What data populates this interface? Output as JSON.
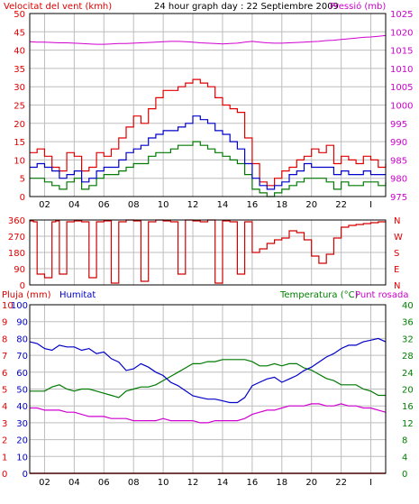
{
  "header": {
    "left_label": "Velocitat del vent (kmh)",
    "title": "24 hour graph day : 22 Septiembre 2009",
    "right_label": "Pressió (mb)"
  },
  "bottom_header": {
    "rain_label": "Pluja (mm)",
    "humidity_label": "Humitat",
    "temperature_label": "Temperatura (°C)",
    "dewpoint_label": "Punt rosada"
  },
  "colors": {
    "background": "#ffffff",
    "grid": "#bdbdbd",
    "frame": "#000000",
    "gust": "#e00000",
    "wind": "#0000c8",
    "wind_green": "#007a00",
    "pressure": "#d000d0",
    "direction": "#d00000",
    "rain": "#d00000",
    "humidity": "#0000c8",
    "temperature": "#007a00",
    "dewpoint": "#d000d0",
    "label_red": "#e00000",
    "label_magenta": "#cc00cc",
    "label_blue": "#0000cc",
    "label_green": "#008000"
  },
  "chart_data": [
    {
      "type": "line",
      "x": [
        0,
        0.5,
        1,
        1.5,
        2,
        2.5,
        3,
        3.5,
        4,
        4.5,
        5,
        5.5,
        6,
        6.5,
        7,
        7.5,
        8,
        8.5,
        9,
        9.5,
        10,
        10.5,
        11,
        11.5,
        12,
        12.5,
        13,
        13.5,
        14,
        14.5,
        15,
        15.5,
        16,
        16.5,
        17,
        17.5,
        18,
        18.5,
        19,
        19.5,
        20,
        20.5,
        21,
        21.5,
        22,
        22.5,
        23,
        23.5,
        24
      ],
      "x_tick_labels": [
        "02",
        "04",
        "06",
        "08",
        "10",
        "12",
        "14",
        "16",
        "18",
        "20",
        "22",
        "I"
      ],
      "x_ticks": [
        1,
        3,
        5,
        7,
        9,
        11,
        13,
        15,
        17,
        19,
        21,
        23
      ],
      "series": [
        {
          "values": [
            12,
            13,
            11,
            8,
            7,
            12,
            11,
            7,
            8,
            12,
            11,
            13,
            16,
            19,
            22,
            20,
            24,
            27,
            29,
            29,
            30,
            31,
            32,
            31,
            30,
            27,
            25,
            24,
            23,
            16,
            9,
            4,
            3,
            5,
            7,
            8,
            10,
            11,
            13,
            12,
            14,
            9,
            11,
            10,
            9,
            11,
            10,
            8,
            9
          ],
          "color_key": "gust"
        },
        {
          "values": [
            8,
            9,
            8,
            7,
            5,
            6,
            7,
            4,
            5,
            7,
            8,
            8,
            10,
            12,
            13,
            14,
            16,
            17,
            18,
            18,
            19,
            20,
            22,
            21,
            20,
            18,
            17,
            15,
            13,
            9,
            5,
            3,
            2,
            3,
            4,
            6,
            7,
            9,
            8,
            8,
            8,
            6,
            7,
            6,
            6,
            7,
            6,
            6,
            6
          ],
          "color_key": "wind"
        },
        {
          "values": [
            5,
            5,
            4,
            3,
            2,
            4,
            5,
            2,
            3,
            5,
            6,
            6,
            7,
            8,
            9,
            9,
            11,
            12,
            12,
            13,
            14,
            14,
            15,
            14,
            13,
            12,
            11,
            10,
            9,
            6,
            2,
            1,
            0,
            1,
            2,
            3,
            4,
            5,
            5,
            5,
            4,
            2,
            4,
            3,
            3,
            4,
            4,
            3,
            4
          ],
          "color_key": "wind_green"
        }
      ],
      "pressure_series": {
        "values": [
          1017.3,
          1017.2,
          1017.2,
          1017.1,
          1017.0,
          1017.0,
          1016.9,
          1016.8,
          1016.7,
          1016.6,
          1016.6,
          1016.7,
          1016.8,
          1016.8,
          1016.9,
          1017.0,
          1017.1,
          1017.2,
          1017.3,
          1017.4,
          1017.4,
          1017.3,
          1017.2,
          1017.0,
          1016.9,
          1016.8,
          1016.7,
          1016.8,
          1016.9,
          1017.2,
          1017.4,
          1017.2,
          1017.0,
          1016.9,
          1016.9,
          1017.0,
          1017.1,
          1017.2,
          1017.3,
          1017.4,
          1017.6,
          1017.7,
          1017.9,
          1018.1,
          1018.3,
          1018.5,
          1018.6,
          1018.8,
          1019.0
        ],
        "color_key": "pressure"
      },
      "left_axis": {
        "label": "Velocitat del vent (kmh)",
        "ticks": [
          0,
          5,
          10,
          15,
          20,
          25,
          30,
          35,
          40,
          45,
          50
        ],
        "ylim": [
          0,
          50
        ]
      },
      "right_axis": {
        "label": "Pressió (mb)",
        "ticks": [
          975,
          980,
          985,
          990,
          995,
          1000,
          1005,
          1010,
          1015,
          1020,
          1025
        ],
        "ylim": [
          975,
          1025
        ]
      },
      "title": "24 hour graph day : 22 Septiembre 2009",
      "grid": true
    },
    {
      "type": "line",
      "x": [
        0,
        0.25,
        0.5,
        1,
        1.5,
        1.75,
        2,
        2.5,
        3,
        3.5,
        4,
        4.5,
        5,
        5.5,
        6,
        6.5,
        7,
        7.5,
        8,
        8.5,
        9,
        9.5,
        10,
        10.5,
        11,
        11.5,
        12,
        12.5,
        13,
        13.5,
        14,
        14.5,
        15,
        15.5,
        16,
        16.5,
        17,
        17.5,
        18,
        18.5,
        19,
        19.5,
        20,
        20.5,
        21,
        21.5,
        22,
        22.5,
        23,
        23.5,
        24
      ],
      "series": [
        {
          "values": [
            355,
            350,
            60,
            40,
            350,
            355,
            60,
            350,
            355,
            350,
            40,
            350,
            355,
            10,
            350,
            360,
            355,
            20,
            350,
            360,
            355,
            350,
            60,
            360,
            355,
            350,
            360,
            10,
            355,
            350,
            60,
            350,
            180,
            200,
            230,
            250,
            260,
            300,
            290,
            250,
            160,
            120,
            170,
            260,
            320,
            330,
            335,
            340,
            345,
            350,
            352
          ],
          "color_key": "direction"
        }
      ],
      "left_axis": {
        "ticks": [
          0,
          90,
          180,
          270,
          360
        ],
        "ylim": [
          0,
          360
        ]
      },
      "right_axis": {
        "ticks_labels": [
          "N",
          "W",
          "S",
          "E",
          "N"
        ]
      },
      "grid": true
    },
    {
      "type": "line",
      "x": [
        0,
        0.5,
        1,
        1.5,
        2,
        2.5,
        3,
        3.5,
        4,
        4.5,
        5,
        5.5,
        6,
        6.5,
        7,
        7.5,
        8,
        8.5,
        9,
        9.5,
        10,
        10.5,
        11,
        11.5,
        12,
        12.5,
        13,
        13.5,
        14,
        14.5,
        15,
        15.5,
        16,
        16.5,
        17,
        17.5,
        18,
        18.5,
        19,
        19.5,
        20,
        20.5,
        21,
        21.5,
        22,
        22.5,
        23,
        23.5,
        24
      ],
      "series": [
        {
          "name": "Humitat",
          "values": [
            78,
            77,
            74,
            73,
            76,
            75,
            75,
            73,
            74,
            71,
            72,
            68,
            66,
            61,
            62,
            65,
            63,
            60,
            58,
            54,
            52,
            49,
            46,
            45,
            44,
            44,
            43,
            42,
            42,
            45,
            52,
            54,
            56,
            57,
            54,
            56,
            58,
            61,
            63,
            66,
            69,
            71,
            74,
            76,
            76,
            78,
            79,
            80,
            78
          ],
          "color_key": "humidity"
        },
        {
          "name": "Temperatura (°C)",
          "values": [
            19.5,
            19.5,
            19.5,
            20.5,
            21,
            20,
            19.5,
            20,
            20,
            19.5,
            19,
            18.5,
            18,
            19.5,
            20,
            20.5,
            20.5,
            21,
            22,
            23,
            24,
            25,
            26,
            26,
            26.5,
            26.5,
            27,
            27,
            27,
            27,
            26.5,
            25.5,
            25.5,
            26,
            25.5,
            26,
            26,
            25,
            24.5,
            23.5,
            22.5,
            22,
            21,
            21,
            21,
            20,
            19.5,
            18.5,
            18.5
          ],
          "color_key": "temperature"
        },
        {
          "name": "Punt rosada",
          "values": [
            15.5,
            15.5,
            15,
            15,
            15,
            14.5,
            14.5,
            14,
            13.5,
            13.5,
            13.5,
            13,
            13,
            13,
            12.5,
            12.5,
            12.5,
            12.5,
            13,
            12.5,
            12.5,
            12.5,
            12.5,
            12,
            12,
            12.5,
            12.5,
            12.5,
            12.5,
            13,
            14,
            14.5,
            15,
            15,
            15.5,
            16,
            16,
            16,
            16.5,
            16.5,
            16,
            16,
            16.5,
            16,
            16,
            15.5,
            15.5,
            15,
            14.5
          ],
          "color_key": "dewpoint"
        },
        {
          "name": "Pluja (mm)",
          "values": [
            0,
            0,
            0,
            0,
            0,
            0,
            0,
            0,
            0,
            0,
            0,
            0,
            0,
            0,
            0,
            0,
            0,
            0,
            0,
            0,
            0,
            0,
            0,
            0,
            0,
            0,
            0,
            0,
            0,
            0,
            0,
            0,
            0,
            0,
            0,
            0,
            0,
            0,
            0,
            0,
            0,
            0,
            0,
            0,
            0,
            0,
            0,
            0,
            0
          ],
          "color_key": "rain"
        }
      ],
      "rain_axis": {
        "label": "Pluja (mm)",
        "ticks": [
          0,
          1,
          2,
          3,
          4,
          5,
          6,
          7,
          8,
          9,
          10
        ],
        "ylim": [
          0,
          10
        ]
      },
      "humidity_axis": {
        "label": "Humitat",
        "ticks": [
          0,
          10,
          20,
          30,
          40,
          50,
          60,
          70,
          80,
          90,
          100
        ],
        "ylim": [
          0,
          100
        ]
      },
      "temperature_axis": {
        "label": "Temperatura (°C)",
        "ticks": [
          0,
          4,
          8,
          12,
          16,
          20,
          24,
          28,
          32,
          36,
          40
        ],
        "ylim": [
          0,
          40
        ]
      },
      "grid": true
    }
  ]
}
